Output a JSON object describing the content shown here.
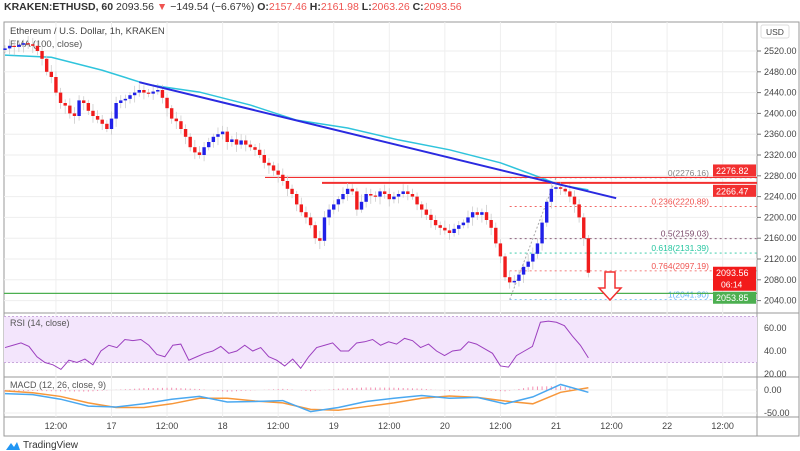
{
  "header": {
    "symbol": "KRAKEN:ETHUSD, 60",
    "last": "2093.56",
    "change": "−149.54 (−6.67%)",
    "open_label": "O:",
    "open": "2157.46",
    "high_label": "H:",
    "high": "2161.98",
    "low_label": "L:",
    "low": "2063.26",
    "close_label": "C:",
    "close": "2093.56"
  },
  "legend": {
    "title": "Ethereum / U.S. Dollar, 1h, KRAKEN",
    "ema": "EMA (100, close)",
    "rsi": "RSI (14, close)",
    "macd": "MACD (12, 26, close, 9)"
  },
  "currency": "USD",
  "branding": "TradingView",
  "colors": {
    "up": "#2020e8",
    "down": "#f01c1c",
    "ema": "#2fc4dc",
    "trend": "#2a2ae0",
    "resistance": "#f23030",
    "support": "#4caf50",
    "rsi": "#9c3fbf",
    "rsi_band": "#f3e5fc",
    "macd": "#4aa8f0",
    "signal": "#f7973a",
    "hist_pos": "#f48fb1",
    "hist_neg": "#f48fb1"
  },
  "chart_data": [
    {
      "type": "candlestick",
      "interval": "1h",
      "y_ticks": [
        "2520.00",
        "2480.00",
        "2440.00",
        "2400.00",
        "2360.00",
        "2320.00",
        "2280.00",
        "2240.00",
        "2200.00",
        "2160.00",
        "2120.00",
        "2080.00",
        "2040.00"
      ],
      "x_ticks": [
        "12:00",
        "17",
        "12:00",
        "18",
        "12:00",
        "19",
        "12:00",
        "20",
        "12:00",
        "21",
        "12:00",
        "22",
        "12:00"
      ],
      "closes": [
        2525,
        2530,
        2528,
        2532,
        2535,
        2533,
        2530,
        2520,
        2505,
        2480,
        2470,
        2440,
        2420,
        2415,
        2400,
        2395,
        2425,
        2420,
        2405,
        2395,
        2388,
        2380,
        2370,
        2390,
        2420,
        2425,
        2428,
        2435,
        2440,
        2445,
        2440,
        2438,
        2442,
        2445,
        2430,
        2410,
        2390,
        2385,
        2370,
        2355,
        2335,
        2325,
        2320,
        2335,
        2345,
        2355,
        2360,
        2365,
        2345,
        2350,
        2340,
        2348,
        2340,
        2335,
        2330,
        2320,
        2305,
        2300,
        2290,
        2282,
        2270,
        2255,
        2245,
        2225,
        2210,
        2200,
        2185,
        2160,
        2155,
        2200,
        2215,
        2225,
        2235,
        2245,
        2255,
        2250,
        2215,
        2230,
        2245,
        2242,
        2240,
        2250,
        2245,
        2235,
        2240,
        2245,
        2250,
        2245,
        2240,
        2225,
        2215,
        2205,
        2195,
        2185,
        2180,
        2175,
        2170,
        2178,
        2185,
        2190,
        2200,
        2210,
        2205,
        2210,
        2195,
        2180,
        2150,
        2125,
        2085,
        2075,
        2078,
        2090,
        2105,
        2115,
        2130,
        2150,
        2190,
        2230,
        2255,
        2258,
        2255,
        2250,
        2240,
        2225,
        2200,
        2160,
        2093.56
      ],
      "ema100": {
        "hours": [
          0,
          10,
          21,
          31,
          42,
          53,
          63,
          74,
          85,
          96,
          107,
          114,
          120,
          126
        ],
        "values": [
          2512,
          2508,
          2483,
          2455,
          2441,
          2416,
          2387,
          2372,
          2349,
          2330,
          2305,
          2282,
          2262,
          2253
        ]
      },
      "trendline": {
        "from_price": 2460,
        "to_price": 2237
      },
      "horizontal_levels": [
        {
          "price": 2276.82,
          "label": "2276.82",
          "kind": "resistance"
        },
        {
          "price": 2266.47,
          "label": "2266.47",
          "kind": "resistance"
        },
        {
          "price": 2053.85,
          "label": "2053.85",
          "kind": "support"
        }
      ],
      "last_price_badge": {
        "price": "2093.56",
        "countdown": "06:14"
      },
      "fibonacci": [
        {
          "ratio": "0",
          "price": 2276.16,
          "label": "0(2276.16)",
          "color": "#888888"
        },
        {
          "ratio": "0.236",
          "price": 2220.88,
          "label": "0.236(2220.88)",
          "color": "#ef5350"
        },
        {
          "ratio": "0.5",
          "price": 2159.03,
          "label": "0.5(2159.03)",
          "color": "#7b4a6a"
        },
        {
          "ratio": "0.618",
          "price": 2131.39,
          "label": "0.618(2131.39)",
          "color": "#26c6a0"
        },
        {
          "ratio": "0.764",
          "price": 2097.19,
          "label": "0.764(2097.19)",
          "color": "#ef5350"
        },
        {
          "ratio": "1",
          "price": 2041.9,
          "label": "1(2041.90)",
          "color": "#64b5f6"
        }
      ]
    },
    {
      "type": "line",
      "name": "RSI (14, close)",
      "y_ticks": [
        "60.00",
        "40.00",
        "20.00"
      ],
      "band": [
        30,
        70
      ],
      "values": [
        43,
        45,
        47,
        44,
        35,
        30,
        28,
        24,
        32,
        30,
        33,
        28,
        40,
        45,
        43,
        50,
        49,
        50,
        45,
        37,
        35,
        45,
        46,
        32,
        35,
        38,
        40,
        44,
        38,
        40,
        45,
        40,
        43,
        35,
        32,
        27,
        33,
        25,
        35,
        43,
        45,
        47,
        40,
        40,
        47,
        48,
        50,
        45,
        48,
        46,
        51,
        49,
        43,
        46,
        40,
        36,
        40,
        41,
        48,
        46,
        42,
        38,
        27,
        26,
        36,
        40,
        44,
        65,
        66,
        65,
        62,
        53,
        45,
        34
      ]
    },
    {
      "type": "line",
      "name": "MACD (12, 26, close, 9)",
      "y_ticks": [
        "0.00",
        "-50.00"
      ],
      "hours": [
        0,
        6,
        12,
        18,
        24,
        30,
        36,
        42,
        48,
        54,
        60,
        66,
        72,
        78,
        84,
        90,
        96,
        102,
        108,
        114,
        120,
        126
      ],
      "macd": [
        -8,
        -10,
        -20,
        -35,
        -37,
        -30,
        -20,
        -14,
        -26,
        -25,
        -23,
        -47,
        -38,
        -25,
        -18,
        -12,
        -18,
        -16,
        -30,
        -15,
        12,
        -5
      ],
      "signal": [
        -2,
        -6,
        -14,
        -28,
        -38,
        -38,
        -30,
        -18,
        -18,
        -24,
        -28,
        -42,
        -44,
        -36,
        -28,
        -18,
        -13,
        -16,
        -24,
        -30,
        -5,
        5
      ]
    }
  ]
}
